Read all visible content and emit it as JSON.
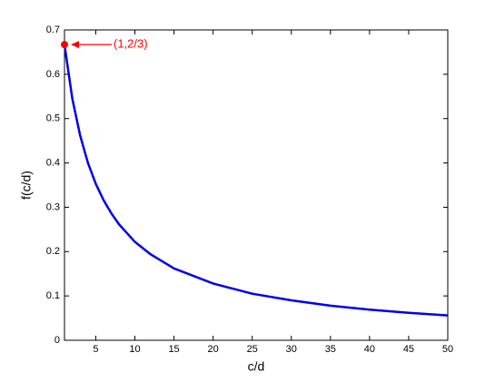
{
  "chart_data": {
    "type": "line",
    "xlabel": "c/d",
    "ylabel": "f(c/d)",
    "x": [
      1,
      2,
      3,
      4,
      5,
      6,
      7,
      8,
      10,
      12,
      15,
      20,
      25,
      30,
      35,
      40,
      45,
      50
    ],
    "series": [
      {
        "color": "#0000ee",
        "values": [
          0.667,
          0.545,
          0.462,
          0.4,
          0.353,
          0.316,
          0.286,
          0.261,
          0.222,
          0.194,
          0.162,
          0.128,
          0.105,
          0.09,
          0.078,
          0.069,
          0.062,
          0.056
        ]
      }
    ],
    "annotation": {
      "text": "(1,2/3)",
      "x": 1,
      "y": 0.667,
      "color": "#ff0000"
    },
    "xlim": [
      1,
      50
    ],
    "xticks": [
      5,
      10,
      15,
      20,
      25,
      30,
      35,
      40,
      45,
      50
    ],
    "ylim": [
      0,
      0.7
    ],
    "yticks": [
      0,
      0.1,
      0.2,
      0.3,
      0.4,
      0.5,
      0.6,
      0.7
    ]
  }
}
